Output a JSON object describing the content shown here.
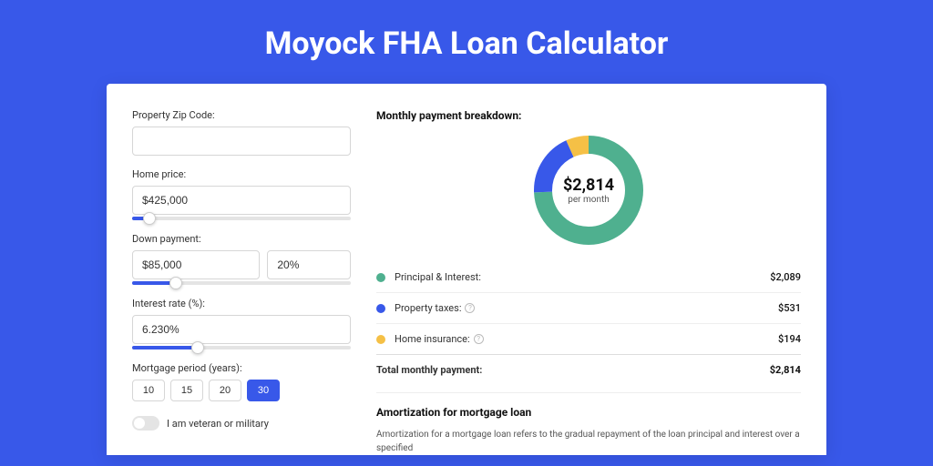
{
  "page_title": "Moyock FHA Loan Calculator",
  "colors": {
    "page_bg": "#3858e9",
    "card_bg": "#ffffff",
    "accent": "#3858e9"
  },
  "form": {
    "zip_label": "Property Zip Code:",
    "zip_value": "",
    "home_price_label": "Home price:",
    "home_price_value": "$425,000",
    "home_price_slider_pct": 8,
    "down_payment_label": "Down payment:",
    "down_payment_amount": "$85,000",
    "down_payment_pct": "20%",
    "down_payment_slider_pct": 20,
    "interest_label": "Interest rate (%):",
    "interest_value": "6.230%",
    "interest_slider_pct": 30,
    "period_label": "Mortgage period (years):",
    "period_options": [
      "10",
      "15",
      "20",
      "30"
    ],
    "period_selected": "30",
    "veteran_label": "I am veteran or military",
    "veteran_on": false
  },
  "breakdown": {
    "title": "Monthly payment breakdown:",
    "donut": {
      "center_amount": "$2,814",
      "center_sub": "per month",
      "stroke_width": 20,
      "radius": 50,
      "slices": [
        {
          "key": "principal_interest",
          "value": 2089,
          "color": "#4fb08f"
        },
        {
          "key": "property_taxes",
          "value": 531,
          "color": "#3858e9"
        },
        {
          "key": "home_insurance",
          "value": 194,
          "color": "#f5c046"
        }
      ]
    },
    "rows": [
      {
        "label": "Principal & Interest:",
        "value": "$2,089",
        "color": "#4fb08f",
        "info": false
      },
      {
        "label": "Property taxes:",
        "value": "$531",
        "color": "#3858e9",
        "info": true
      },
      {
        "label": "Home insurance:",
        "value": "$194",
        "color": "#f5c046",
        "info": true
      }
    ],
    "total_label": "Total monthly payment:",
    "total_value": "$2,814"
  },
  "amortization": {
    "title": "Amortization for mortgage loan",
    "text": "Amortization for a mortgage loan refers to the gradual repayment of the loan principal and interest over a specified"
  }
}
